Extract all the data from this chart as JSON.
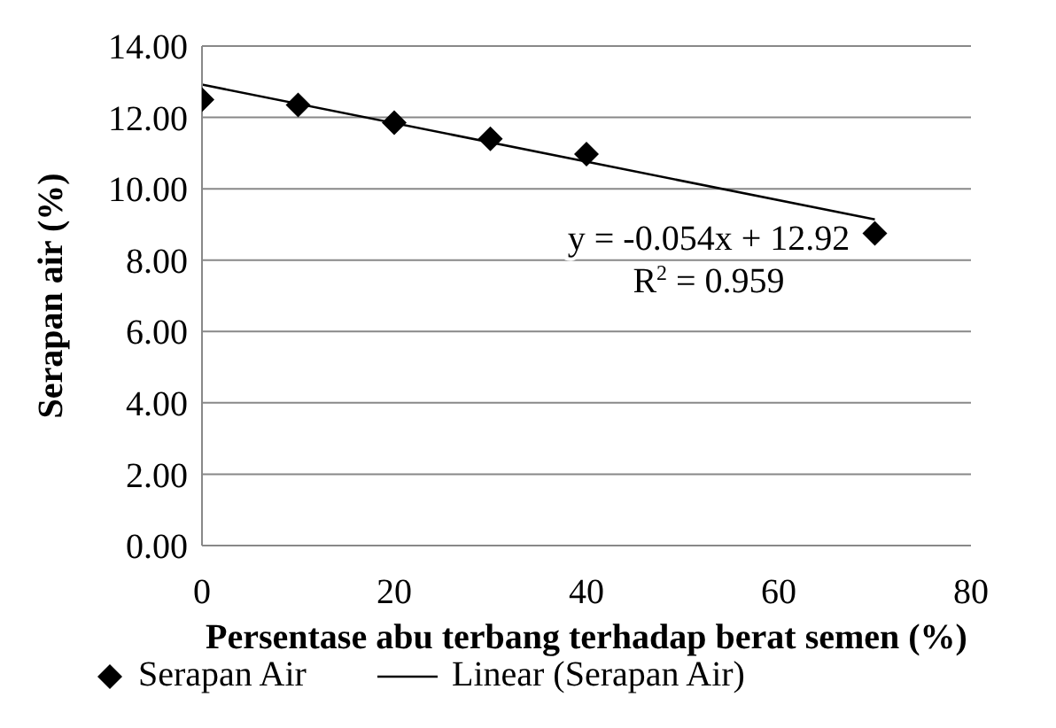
{
  "chart_data": {
    "type": "scatter",
    "xlabel": "Persentase abu terbang terhadap berat semen (%)",
    "ylabel": "Serapan air (%)",
    "x": [
      0,
      10,
      20,
      30,
      40,
      70
    ],
    "series": [
      {
        "name": "Serapan Air",
        "color": "#000000",
        "marker": "diamond",
        "values": [
          12.5,
          12.35,
          11.85,
          11.4,
          10.97,
          8.75
        ]
      },
      {
        "name": "Linear (Serapan Air)",
        "type": "line",
        "color": "#000000",
        "marker": "none",
        "x": [
          0,
          70
        ],
        "values": [
          12.92,
          9.14
        ]
      }
    ],
    "xlim": [
      0,
      80
    ],
    "xticks": [
      0,
      20,
      40,
      60,
      80
    ],
    "ylim": [
      0,
      14
    ],
    "yticks": [
      {
        "value": 0,
        "label": "0.00"
      },
      {
        "value": 2,
        "label": "2.00"
      },
      {
        "value": 4,
        "label": "4.00"
      },
      {
        "value": 6,
        "label": "6.00"
      },
      {
        "value": 8,
        "label": "8.00"
      },
      {
        "value": 10,
        "label": "10.00"
      },
      {
        "value": 12,
        "label": "12.00"
      },
      {
        "value": 14,
        "label": "14.00"
      }
    ],
    "grid": "y",
    "legend": "bottom",
    "annotations": [
      "y = -0.054x + 12.92",
      "R$^{2}$ = 0.959"
    ]
  }
}
